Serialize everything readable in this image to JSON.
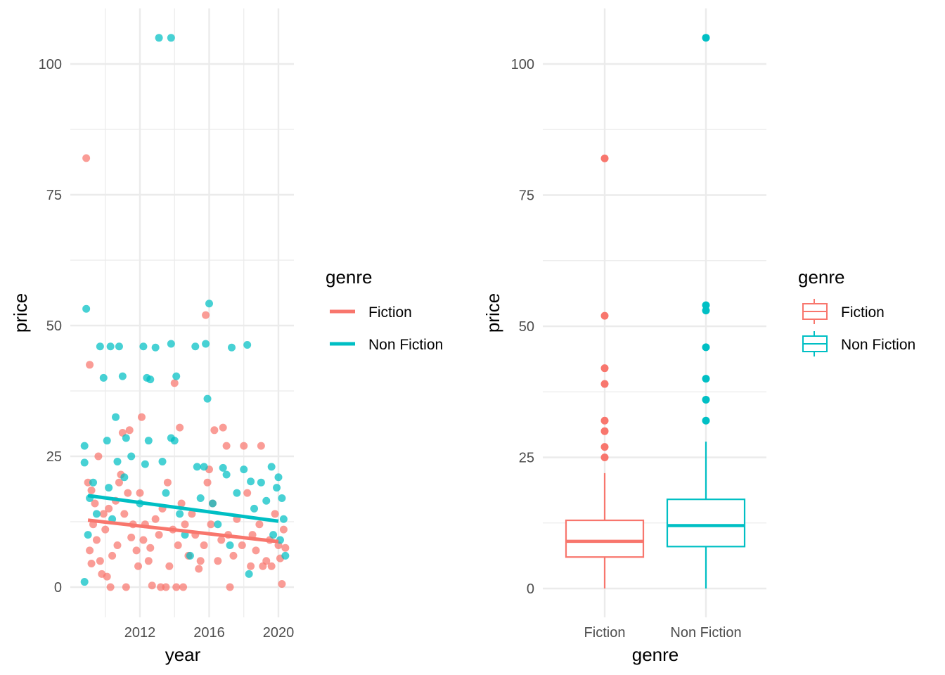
{
  "colors": {
    "fiction": "#F8766D",
    "nonfiction": "#00BFC4",
    "grid": "#EBEBEB"
  },
  "chart_data": [
    {
      "type": "scatter",
      "xlabel": "year",
      "ylabel": "price",
      "xticks": [
        2012,
        2016,
        2020
      ],
      "yticks": [
        0,
        25,
        50,
        75,
        100
      ],
      "xlim": [
        2008.6,
        2020.6
      ],
      "ylim": [
        -5,
        110
      ],
      "grid": true,
      "legend": {
        "title": "genre",
        "position": "right",
        "entries": [
          "Fiction",
          "Non Fiction"
        ]
      },
      "series": [
        {
          "name": "Fiction",
          "color": "#F8766D",
          "trend": {
            "x": [
              2009,
              2020
            ],
            "y": [
              12.8,
              8.7
            ]
          },
          "points": [
            [
              2008.9,
              82
            ],
            [
              2009.1,
              42.5
            ],
            [
              2009.6,
              25
            ],
            [
              2009.2,
              18.5
            ],
            [
              2009.0,
              20
            ],
            [
              2009.4,
              16
            ],
            [
              2009.3,
              12
            ],
            [
              2009.5,
              9
            ],
            [
              2009.1,
              7
            ],
            [
              2009.7,
              5
            ],
            [
              2009.2,
              4.5
            ],
            [
              2009.8,
              2.5
            ],
            [
              2009.9,
              14
            ],
            [
              2010.1,
              2
            ],
            [
              2010.3,
              0
            ],
            [
              2010.0,
              11
            ],
            [
              2010.4,
              6
            ],
            [
              2010.6,
              16.5
            ],
            [
              2010.8,
              20
            ],
            [
              2010.9,
              21.5
            ],
            [
              2010.2,
              15
            ],
            [
              2010.7,
              8
            ],
            [
              2011.0,
              29.5
            ],
            [
              2011.4,
              30
            ],
            [
              2011.2,
              0
            ],
            [
              2011.6,
              12
            ],
            [
              2011.1,
              14
            ],
            [
              2011.3,
              18
            ],
            [
              2011.5,
              9.5
            ],
            [
              2011.8,
              7
            ],
            [
              2011.9,
              4
            ],
            [
              2012.1,
              32.5
            ],
            [
              2012.0,
              18
            ],
            [
              2012.3,
              12
            ],
            [
              2012.5,
              5
            ],
            [
              2012.7,
              0.3
            ],
            [
              2012.2,
              9
            ],
            [
              2012.9,
              13
            ],
            [
              2012.6,
              7.5
            ],
            [
              2013.2,
              0
            ],
            [
              2013.5,
              0
            ],
            [
              2013.1,
              10
            ],
            [
              2013.3,
              15
            ],
            [
              2013.7,
              4
            ],
            [
              2013.9,
              11
            ],
            [
              2013.6,
              20
            ],
            [
              2014.0,
              39
            ],
            [
              2014.3,
              30.5
            ],
            [
              2014.1,
              0
            ],
            [
              2014.5,
              0
            ],
            [
              2014.2,
              8
            ],
            [
              2014.6,
              12
            ],
            [
              2014.8,
              6
            ],
            [
              2014.4,
              16
            ],
            [
              2015.0,
              14
            ],
            [
              2015.2,
              10
            ],
            [
              2015.5,
              5
            ],
            [
              2015.7,
              8
            ],
            [
              2015.4,
              3.5
            ],
            [
              2015.9,
              20
            ],
            [
              2015.8,
              52
            ],
            [
              2016.0,
              22.5
            ],
            [
              2016.3,
              30
            ],
            [
              2016.1,
              12
            ],
            [
              2016.5,
              5
            ],
            [
              2016.7,
              9
            ],
            [
              2016.2,
              16
            ],
            [
              2016.8,
              30.5
            ],
            [
              2017.2,
              0
            ],
            [
              2017.0,
              27
            ],
            [
              2017.1,
              10
            ],
            [
              2017.4,
              6
            ],
            [
              2017.6,
              13
            ],
            [
              2017.9,
              8
            ],
            [
              2018.0,
              27
            ],
            [
              2018.2,
              18
            ],
            [
              2018.5,
              10
            ],
            [
              2018.7,
              7
            ],
            [
              2018.4,
              4
            ],
            [
              2018.9,
              12
            ],
            [
              2019.0,
              27
            ],
            [
              2019.3,
              5
            ],
            [
              2019.5,
              9
            ],
            [
              2019.8,
              14
            ],
            [
              2019.1,
              4
            ],
            [
              2020.0,
              8
            ],
            [
              2020.2,
              0.6
            ],
            [
              2020.3,
              11
            ],
            [
              2020.1,
              5.5
            ],
            [
              2020.4,
              7.5
            ],
            [
              2019.6,
              4
            ]
          ]
        },
        {
          "name": "Non Fiction",
          "color": "#00BFC4",
          "trend": {
            "x": [
              2009,
              2020
            ],
            "y": [
              17.5,
              12.6
            ]
          },
          "points": [
            [
              2008.9,
              53.2
            ],
            [
              2008.8,
              27
            ],
            [
              2008.8,
              23.8
            ],
            [
              2008.8,
              1
            ],
            [
              2009.0,
              10
            ],
            [
              2009.3,
              20
            ],
            [
              2009.5,
              14
            ],
            [
              2009.1,
              17
            ],
            [
              2009.7,
              46
            ],
            [
              2009.9,
              40
            ],
            [
              2010.1,
              28
            ],
            [
              2010.3,
              46
            ],
            [
              2010.8,
              46
            ],
            [
              2010.6,
              32.5
            ],
            [
              2011.0,
              40.3
            ],
            [
              2011.2,
              28.5
            ],
            [
              2010.4,
              13
            ],
            [
              2010.2,
              19
            ],
            [
              2010.7,
              24
            ],
            [
              2011.1,
              21
            ],
            [
              2011.5,
              25
            ],
            [
              2012.2,
              46
            ],
            [
              2012.4,
              40
            ],
            [
              2012.6,
              39.7
            ],
            [
              2012.9,
              45.8
            ],
            [
              2012.5,
              28
            ],
            [
              2012.3,
              23.5
            ],
            [
              2012.0,
              16
            ],
            [
              2013.1,
              105
            ],
            [
              2013.8,
              105
            ],
            [
              2013.8,
              46.5
            ],
            [
              2014.1,
              40.3
            ],
            [
              2013.8,
              28.5
            ],
            [
              2014.0,
              28
            ],
            [
              2013.3,
              24
            ],
            [
              2013.5,
              18
            ],
            [
              2014.3,
              14
            ],
            [
              2014.6,
              10
            ],
            [
              2014.9,
              6
            ],
            [
              2015.2,
              46
            ],
            [
              2015.8,
              46.5
            ],
            [
              2016.0,
              54.2
            ],
            [
              2015.9,
              36
            ],
            [
              2015.3,
              23
            ],
            [
              2015.7,
              23
            ],
            [
              2015.5,
              17
            ],
            [
              2016.2,
              16
            ],
            [
              2016.5,
              12
            ],
            [
              2016.8,
              22.8
            ],
            [
              2017.0,
              21.5
            ],
            [
              2017.3,
              45.8
            ],
            [
              2017.6,
              18
            ],
            [
              2017.2,
              8
            ],
            [
              2018.2,
              46.3
            ],
            [
              2018.0,
              22.5
            ],
            [
              2018.4,
              20.2
            ],
            [
              2018.6,
              15
            ],
            [
              2018.3,
              2.5
            ],
            [
              2019.0,
              20
            ],
            [
              2019.3,
              16.5
            ],
            [
              2019.6,
              23
            ],
            [
              2019.9,
              19
            ],
            [
              2020.0,
              21
            ],
            [
              2020.2,
              17
            ],
            [
              2020.3,
              13
            ],
            [
              2020.1,
              9
            ],
            [
              2020.4,
              6
            ],
            [
              2019.7,
              10
            ]
          ]
        }
      ]
    },
    {
      "type": "box",
      "xlabel": "genre",
      "ylabel": "price",
      "categories": [
        "Fiction",
        "Non Fiction"
      ],
      "yticks": [
        0,
        25,
        50,
        75,
        100
      ],
      "ylim": [
        -5,
        110
      ],
      "grid": true,
      "legend": {
        "title": "genre",
        "position": "right",
        "entries": [
          "Fiction",
          "Non Fiction"
        ]
      },
      "boxes": [
        {
          "name": "Fiction",
          "color": "#F8766D",
          "min": 0,
          "q1": 6,
          "median": 9,
          "q3": 13,
          "max": 22,
          "outliers": [
            82,
            52,
            42,
            39,
            32,
            30,
            27,
            25
          ]
        },
        {
          "name": "Non Fiction",
          "color": "#00BFC4",
          "min": 0,
          "q1": 8,
          "median": 12,
          "q3": 17,
          "max": 28,
          "outliers": [
            105,
            54,
            53,
            46,
            40,
            36,
            32
          ]
        }
      ]
    }
  ]
}
